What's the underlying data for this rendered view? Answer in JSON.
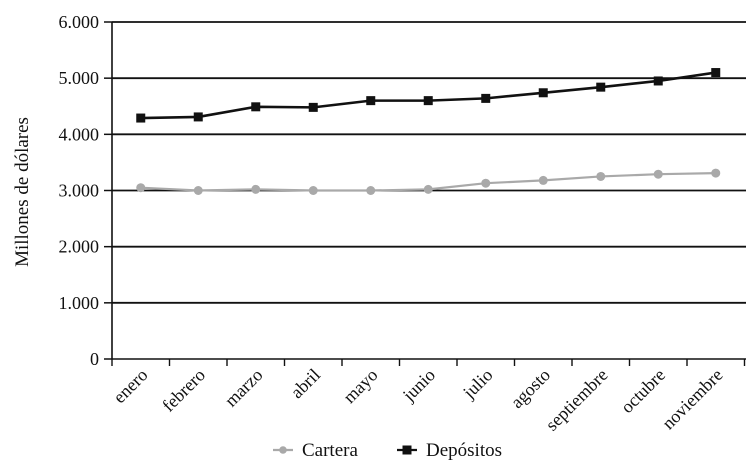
{
  "chart_data": {
    "type": "line",
    "categories": [
      "enero",
      "febrero",
      "marzo",
      "abril",
      "mayo",
      "junio",
      "julio",
      "agosto",
      "septiembre",
      "octubre",
      "noviembre"
    ],
    "series": [
      {
        "name": "Cartera",
        "values": [
          3050,
          3000,
          3020,
          3000,
          3000,
          3020,
          3130,
          3180,
          3250,
          3290,
          3310
        ],
        "color": "#a9a9a9",
        "marker": "circle"
      },
      {
        "name": "Depósitos",
        "values": [
          4290,
          4310,
          4490,
          4480,
          4600,
          4600,
          4640,
          4740,
          4840,
          4950,
          5100
        ],
        "color": "#111111",
        "marker": "square"
      }
    ],
    "xlabel": "",
    "ylabel": "Millones de dólares",
    "ylim": [
      0,
      6000
    ],
    "yticks": [
      "0",
      "1.000",
      "2.000",
      "3.000",
      "4.000",
      "5.000",
      "6.000"
    ],
    "grid": true,
    "legend": "bottom"
  }
}
